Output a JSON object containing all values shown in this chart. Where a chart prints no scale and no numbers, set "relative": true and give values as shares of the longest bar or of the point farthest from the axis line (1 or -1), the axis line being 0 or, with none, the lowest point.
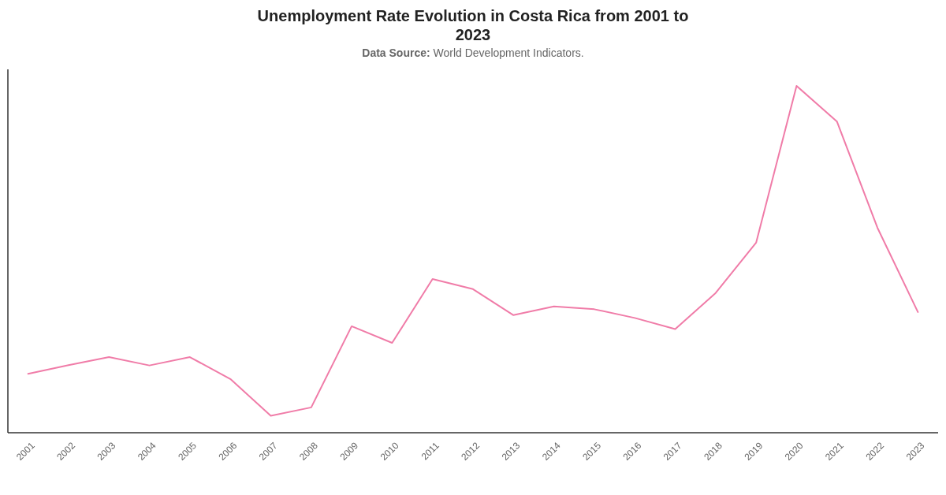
{
  "chart_data": {
    "type": "line",
    "title": "Unemployment Rate Evolution in Costa Rica from 2001 to 2023",
    "subtitle": "Data Source: World Development Indicators.",
    "categories": [
      "2001",
      "2002",
      "2003",
      "2004",
      "2005",
      "2006",
      "2007",
      "2008",
      "2009",
      "2010",
      "2011",
      "2012",
      "2013",
      "2014",
      "2015",
      "2016",
      "2017",
      "2018",
      "2019",
      "2020",
      "2021",
      "2022",
      "2023"
    ],
    "relative": true,
    "series": [
      {
        "color": "#f07ca8",
        "values": [
          0.17,
          0.195,
          0.218,
          0.194,
          0.218,
          0.155,
          0.049,
          0.073,
          0.307,
          0.259,
          0.443,
          0.414,
          0.339,
          0.364,
          0.356,
          0.331,
          0.299,
          0.403,
          0.548,
          1,
          0.897,
          0.591,
          0.348
        ]
      }
    ]
  }
}
